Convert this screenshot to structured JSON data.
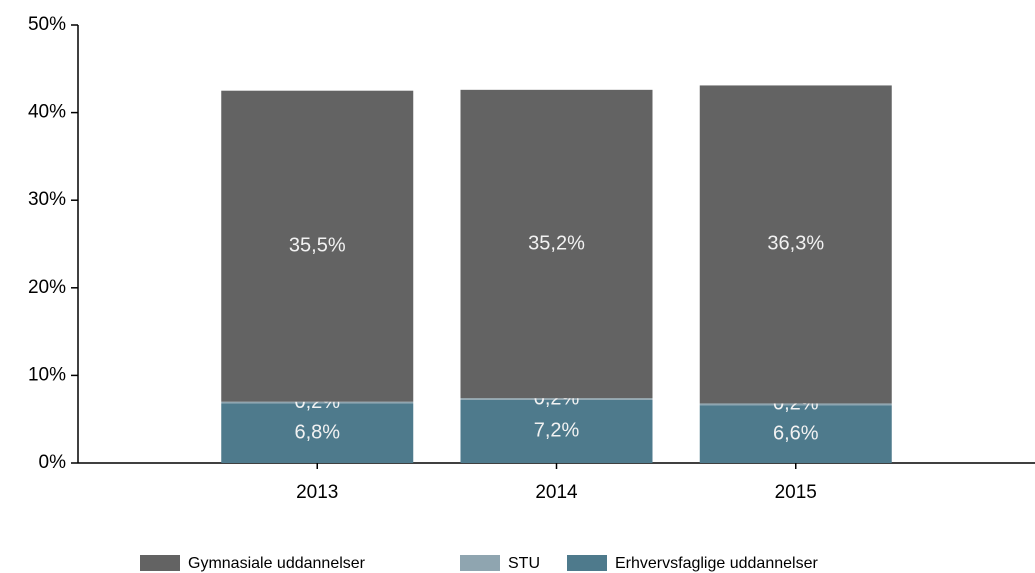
{
  "chart_data": {
    "type": "stacked_bar",
    "categories": [
      "2013",
      "2014",
      "2015"
    ],
    "series": [
      {
        "name": "Gymnasiale uddannelser",
        "color": "#636363",
        "values": [
          35.5,
          35.2,
          36.3
        ],
        "value_labels": [
          "35,5%",
          "35,2%",
          "36,3%"
        ]
      },
      {
        "name": "STU",
        "color": "#8fa5b0",
        "values": [
          0.2,
          0.2,
          0.2
        ],
        "value_labels": [
          "0,2%",
          "0,2%",
          "0,2%"
        ]
      },
      {
        "name": "Erhvervsfaglige uddannelser",
        "color": "#4e7a8c",
        "values": [
          6.8,
          7.2,
          6.6
        ],
        "value_labels": [
          "6,8%",
          "7,2%",
          "6,6%"
        ]
      }
    ],
    "ylim": [
      0,
      50
    ],
    "yticks": [
      {
        "value": 0,
        "label": "0%"
      },
      {
        "value": 10,
        "label": "10%"
      },
      {
        "value": 20,
        "label": "20%"
      },
      {
        "value": 30,
        "label": "30%"
      },
      {
        "value": 40,
        "label": "40%"
      },
      {
        "value": 50,
        "label": "50%"
      }
    ]
  }
}
